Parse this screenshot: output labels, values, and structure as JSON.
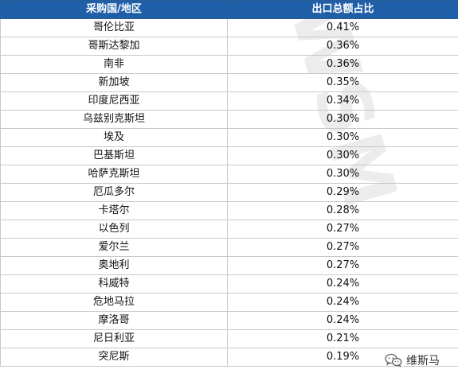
{
  "table": {
    "headers": [
      "采购国/地区",
      "出口总额占比"
    ],
    "rows": [
      {
        "country": "哥伦比亚",
        "share": "0.41%"
      },
      {
        "country": "哥斯达黎加",
        "share": "0.36%"
      },
      {
        "country": "南非",
        "share": "0.36%"
      },
      {
        "country": "新加坡",
        "share": "0.35%"
      },
      {
        "country": "印度尼西亚",
        "share": "0.34%"
      },
      {
        "country": "乌兹别克斯坦",
        "share": "0.30%"
      },
      {
        "country": "埃及",
        "share": "0.30%"
      },
      {
        "country": "巴基斯坦",
        "share": "0.30%"
      },
      {
        "country": "哈萨克斯坦",
        "share": "0.30%"
      },
      {
        "country": "厄瓜多尔",
        "share": "0.29%"
      },
      {
        "country": "卡塔尔",
        "share": "0.28%"
      },
      {
        "country": "以色列",
        "share": "0.27%"
      },
      {
        "country": "爱尔兰",
        "share": "0.27%"
      },
      {
        "country": "奥地利",
        "share": "0.27%"
      },
      {
        "country": "科威特",
        "share": "0.24%"
      },
      {
        "country": "危地马拉",
        "share": "0.24%"
      },
      {
        "country": "摩洛哥",
        "share": "0.24%"
      },
      {
        "country": "尼日利亚",
        "share": "0.21%"
      },
      {
        "country": "突尼斯",
        "share": "0.19%"
      }
    ]
  },
  "watermark": {
    "big_text": "WSM",
    "badge_text": "维斯马",
    "badge_icon": "wechat-icon"
  },
  "colors": {
    "header_bg": "#1f5fa8",
    "header_text": "#ffffff",
    "grid": "#c8c8c8",
    "watermark": "#ececec"
  }
}
